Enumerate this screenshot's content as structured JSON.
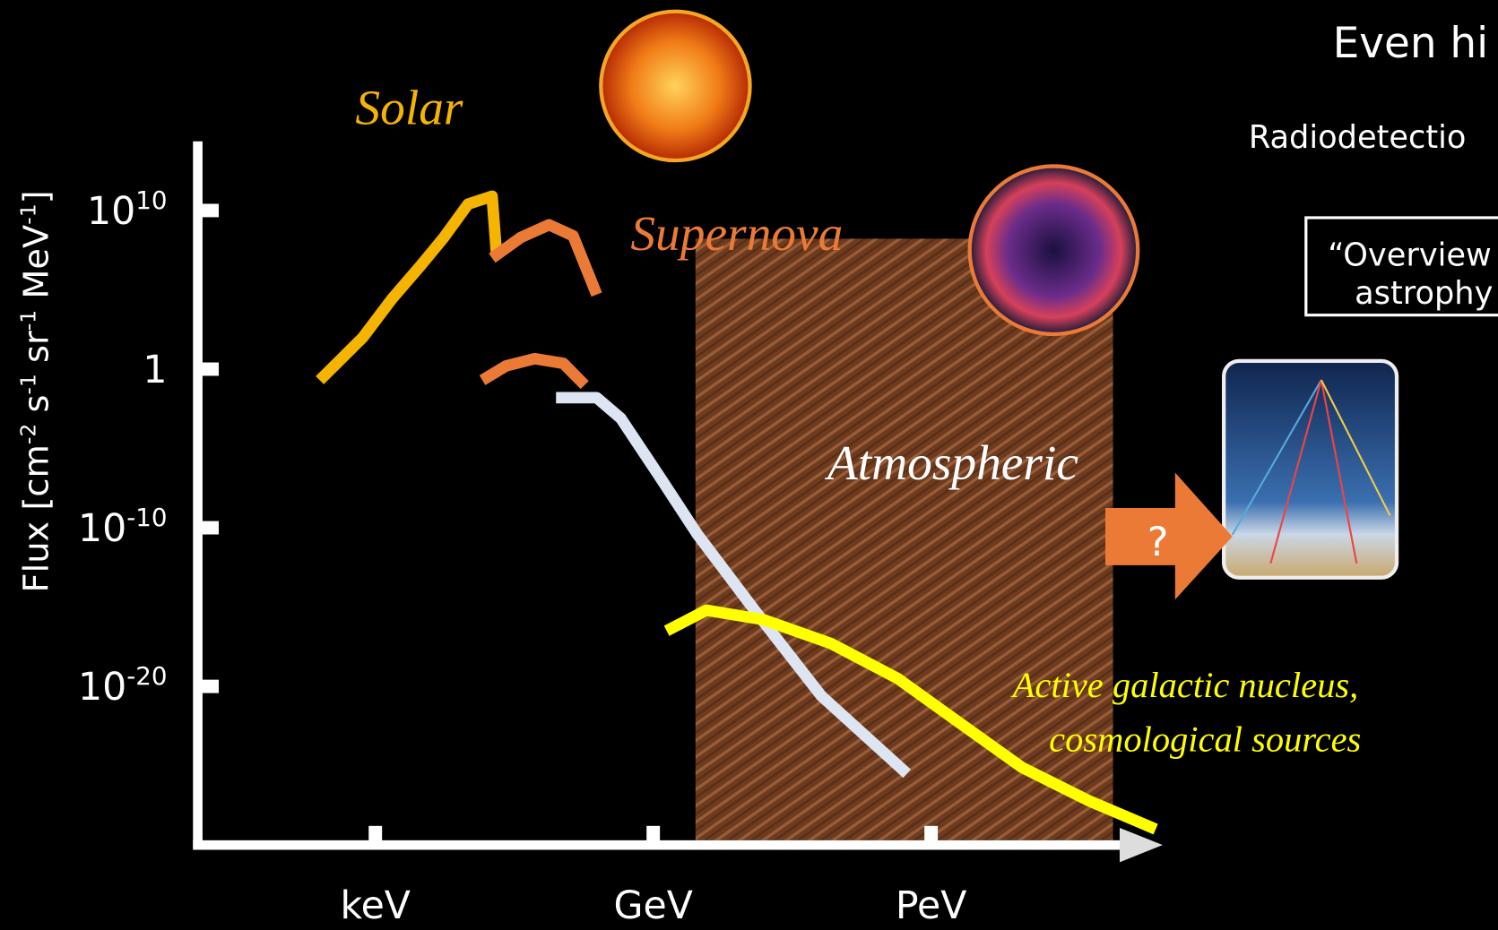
{
  "chart_data": {
    "type": "line",
    "y_label": [
      "Flux [cm",
      "-2",
      " s",
      "-1",
      " sr",
      "-1",
      " MeV",
      "-1",
      "]"
    ],
    "xlim": [
      -1,
      20
    ],
    "ylim": [
      -30,
      14
    ],
    "xticks": [
      {
        "value": 3,
        "label": "keV"
      },
      {
        "value": 9,
        "label": "GeV"
      },
      {
        "value": 15,
        "label": "PeV"
      }
    ],
    "yticks": [
      {
        "value": 10,
        "label": [
          "10",
          "10"
        ]
      },
      {
        "value": 0,
        "label": [
          "1"
        ]
      },
      {
        "value": -10,
        "label": [
          "10",
          "-10"
        ]
      },
      {
        "value": -20,
        "label": [
          "10",
          "-20"
        ]
      }
    ],
    "series": [
      {
        "color": "#f5b400",
        "x": [
          1.8,
          2.73,
          3.35,
          3.97,
          4.48,
          5.0,
          5.52,
          5.62
        ],
        "values": [
          -0.7,
          2.0,
          4.4,
          6.5,
          8.3,
          10.4,
          10.9,
          7.1
        ]
      },
      {
        "color": "#ec7a37",
        "x": [
          5.52,
          6.14,
          6.75,
          7.27,
          7.78
        ],
        "values": [
          7.0,
          8.3,
          9.1,
          8.4,
          4.7
        ]
      },
      {
        "color": "#ec7a37",
        "x": [
          5.31,
          5.82,
          6.44,
          7.06,
          7.52
        ],
        "values": [
          -0.7,
          0.2,
          0.66,
          0.36,
          -1.0
        ]
      },
      {
        "color": "#dde5f2",
        "x": [
          6.9,
          7.78,
          8.3,
          9.12,
          9.95,
          11.19,
          12.63,
          14.48
        ],
        "values": [
          -1.8,
          -1.8,
          -3.1,
          -6.7,
          -10.4,
          -15.2,
          -20.6,
          -25.5
        ]
      },
      {
        "color": "#ffff00",
        "x": [
          9.29,
          10.15,
          11.39,
          12.84,
          14.28,
          15.52,
          16.96,
          18.4,
          19.85
        ],
        "values": [
          -16.5,
          -15.2,
          -15.8,
          -17.3,
          -19.5,
          -22.1,
          -25.1,
          -27.2,
          -29.0
        ]
      }
    ],
    "annotations": [
      {
        "text": "Solar",
        "color": "#f5b400"
      },
      {
        "text": "Supernova",
        "color": "#ec7a37"
      },
      {
        "text": "Atmospheric",
        "color": "#ffffff"
      },
      {
        "text": "Active galactic nucleus,",
        "color": "#ffff00"
      },
      {
        "text": "cosmological sources",
        "color": "#ffff00"
      }
    ]
  },
  "slide": {
    "heading": "Even hi",
    "subheading": "Radiodetectio",
    "box_lines": [
      "“Overview",
      "astrophy"
    ],
    "arrow_label": "?"
  }
}
